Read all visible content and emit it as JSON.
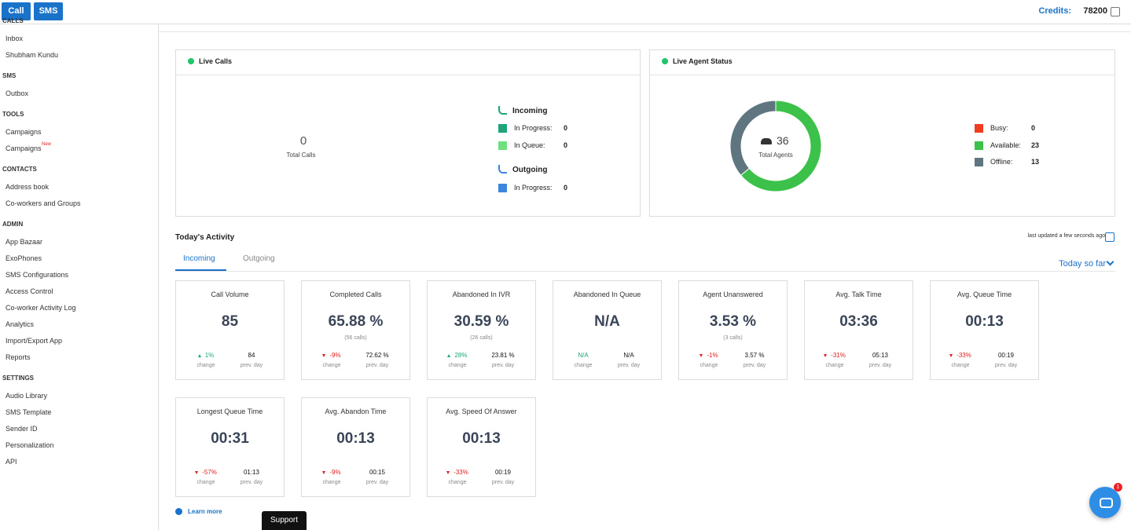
{
  "topbar": {
    "buttons": [
      "Call",
      "SMS"
    ],
    "credits_label": "Credits:",
    "credits": "78200"
  },
  "sidebar": {
    "sections": [
      {
        "heading": "CALLS",
        "items": [
          "Inbox",
          "Shubham Kundu"
        ]
      },
      {
        "heading": "SMS",
        "items": [
          "Outbox"
        ]
      },
      {
        "heading": "TOOLS",
        "items": [
          "Campaigns",
          "Campaigns"
        ],
        "badge": "New"
      },
      {
        "heading": "CONTACTS",
        "items": [
          "Address book",
          "Co-workers and Groups"
        ]
      },
      {
        "heading": "ADMIN",
        "items": [
          "App Bazaar",
          "ExoPhones",
          "SMS Configurations",
          "Access Control",
          "Co-worker Activity Log",
          "Analytics",
          "Import/Export App",
          "Reports"
        ]
      },
      {
        "heading": "SETTINGS",
        "items": [
          "Audio Library",
          "SMS Template",
          "Sender ID",
          "Personalization",
          "API"
        ]
      }
    ]
  },
  "live_calls": {
    "title": "Live Calls",
    "total": 0,
    "total_label": "Total Calls",
    "incoming_label": "Incoming",
    "incoming": [
      {
        "label": "In Progress:",
        "value": 0,
        "color": "#1fa37a"
      },
      {
        "label": "In Queue:",
        "value": 0,
        "color": "#6ee07f"
      }
    ],
    "outgoing_label": "Outgoing",
    "outgoing": [
      {
        "label": "In Progress:",
        "value": 0,
        "color": "#3d86e0"
      }
    ]
  },
  "agent_status": {
    "title": "Live Agent Status",
    "total": 36,
    "total_label": "Total Agents",
    "legend": [
      {
        "label": "Busy:",
        "value": 0,
        "color": "#f03c1f"
      },
      {
        "label": "Available:",
        "value": 23,
        "color": "#3cc24a"
      },
      {
        "label": "Offline:",
        "value": 13,
        "color": "#5f7680"
      }
    ]
  },
  "activity": {
    "title": "Today's Activity",
    "updated": "last updated a few seconds ago",
    "tabs": [
      "Incoming",
      "Outgoing"
    ],
    "range": "Today so far",
    "change_label": "change",
    "prev_label": "prev. day",
    "cards": [
      {
        "title": "Call Volume",
        "value": "85",
        "change": "1%",
        "dir": "up",
        "prev": "84"
      },
      {
        "title": "Completed Calls",
        "value": "65.88 %",
        "sub": "(56 calls)",
        "change": "-9%",
        "dir": "down",
        "prev": "72.62 %"
      },
      {
        "title": "Abandoned In IVR",
        "value": "30.59 %",
        "sub": "(26 calls)",
        "change": "28%",
        "dir": "up",
        "prev": "23.81 %"
      },
      {
        "title": "Abandoned In Queue",
        "value": "N/A",
        "change": "N/A",
        "dir": "none",
        "prev": "N/A"
      },
      {
        "title": "Agent Unanswered",
        "value": "3.53 %",
        "sub": "(3 calls)",
        "change": "-1%",
        "dir": "down",
        "prev": "3.57 %"
      },
      {
        "title": "Avg. Talk Time",
        "value": "03:36",
        "change": "-31%",
        "dir": "down",
        "prev": "05:13"
      },
      {
        "title": "Avg. Queue Time",
        "value": "00:13",
        "change": "-33%",
        "dir": "down",
        "prev": "00:19"
      },
      {
        "title": "Longest Queue Time",
        "value": "00:31",
        "change": "-57%",
        "dir": "down",
        "prev": "01:13"
      },
      {
        "title": "Avg. Abandon Time",
        "value": "00:13",
        "change": "-9%",
        "dir": "down",
        "prev": "00:15"
      },
      {
        "title": "Avg. Speed Of Answer",
        "value": "00:13",
        "change": "-33%",
        "dir": "down",
        "prev": "00:19"
      }
    ]
  },
  "footer": {
    "learn_more": "Learn more",
    "support": "Support",
    "chat_badge": "1"
  }
}
